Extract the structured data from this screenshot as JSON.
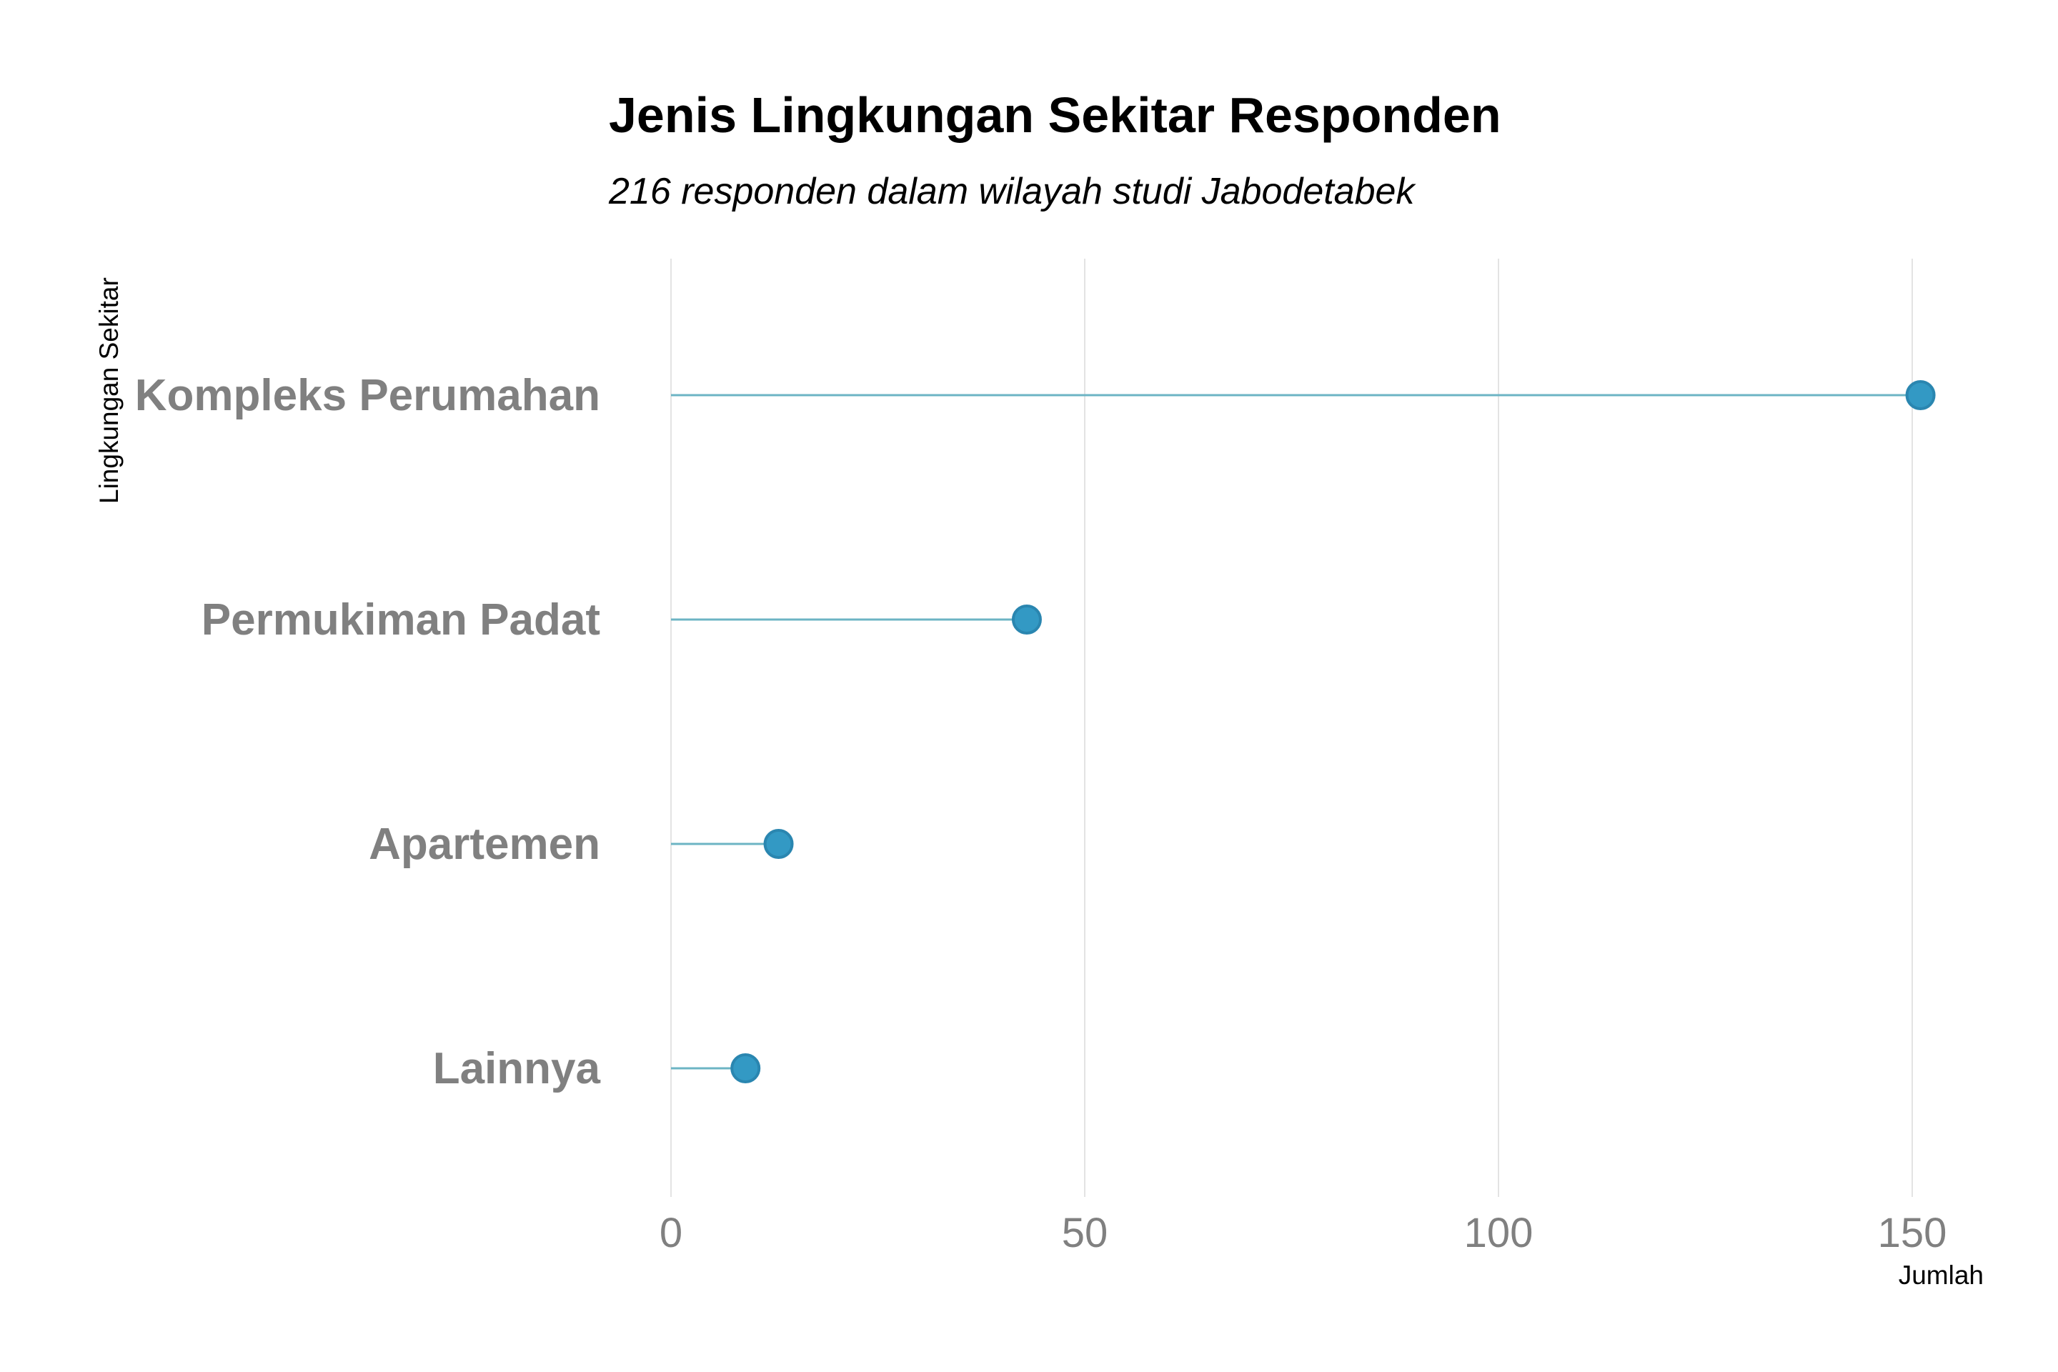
{
  "chart_data": {
    "type": "lollipop",
    "orientation": "horizontal",
    "title": "Jenis Lingkungan Sekitar Responden",
    "subtitle": "216 responden dalam wilayah studi Jabodetabek",
    "xlabel": "Jumlah",
    "ylabel": "Lingkungan Sekitar",
    "categories": [
      "Kompleks Perumahan",
      "Permukiman Padat",
      "Apartemen",
      "Lainnya"
    ],
    "values": [
      151,
      43,
      13,
      9
    ],
    "xlim": [
      0,
      151
    ],
    "xticks": [
      0,
      50,
      100,
      150
    ],
    "xtick_labels": [
      "0",
      "50",
      "100",
      "150"
    ],
    "grid": "vertical major only",
    "legend": "none",
    "colors": {
      "stem": "#6cb4c4",
      "dot_fill": "#3399c4",
      "dot_stroke": "#2a86b0",
      "grid": "#e3e3e3",
      "category_text": "#808080",
      "tick_text": "#808080"
    }
  }
}
